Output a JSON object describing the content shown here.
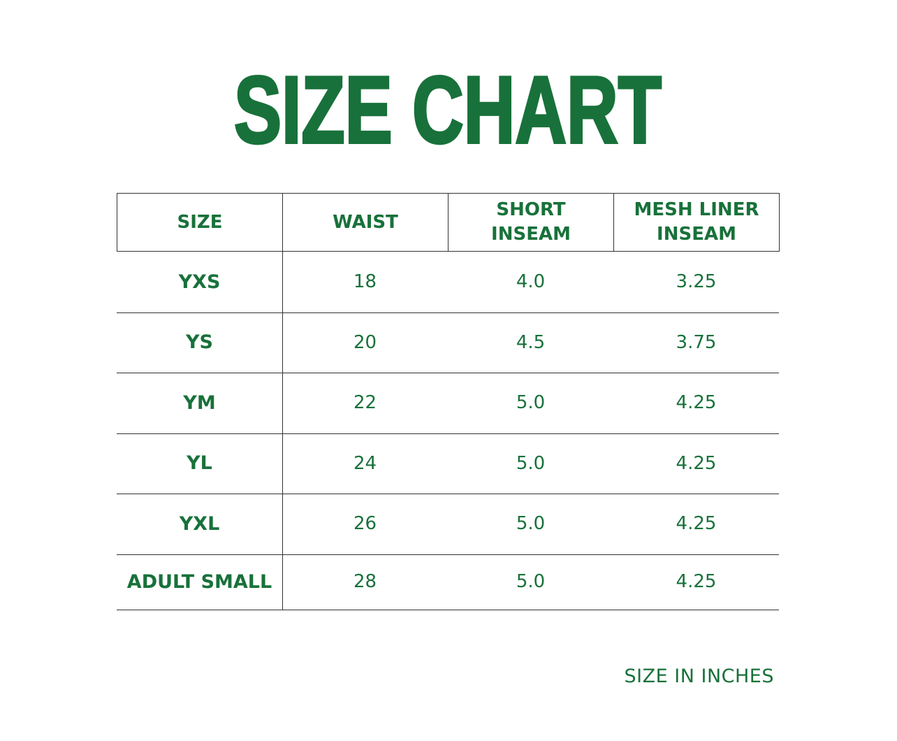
{
  "title": "SIZE CHART",
  "table": {
    "headers": [
      [
        "SIZE"
      ],
      [
        "WAIST"
      ],
      [
        "SHORT",
        "INSEAM"
      ],
      [
        "MESH LINER",
        "INSEAM"
      ]
    ],
    "rows": [
      [
        "YXS",
        "18",
        "4.0",
        "3.25"
      ],
      [
        "YS",
        "20",
        "4.5",
        "3.75"
      ],
      [
        "YM",
        "22",
        "5.0",
        "4.25"
      ],
      [
        "YL",
        "24",
        "5.0",
        "4.25"
      ],
      [
        "YXL",
        "26",
        "5.0",
        "4.25"
      ],
      [
        "ADULT SMALL",
        "28",
        "5.0",
        "4.25"
      ]
    ]
  },
  "footnote": "SIZE IN INCHES"
}
